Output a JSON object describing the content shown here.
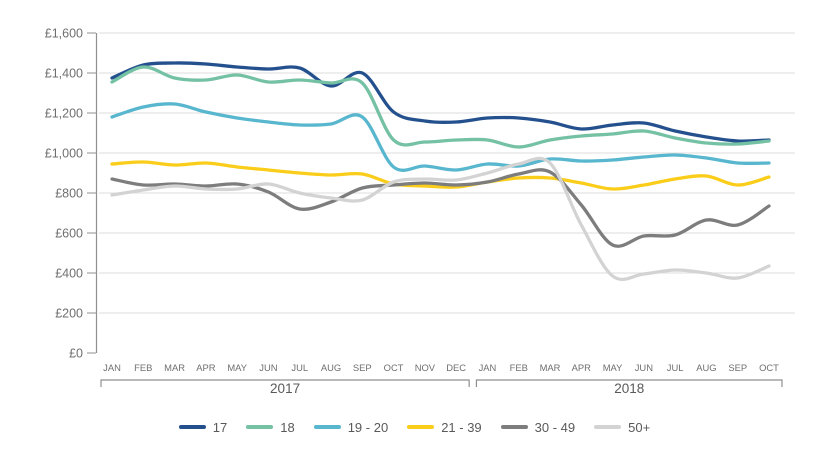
{
  "chart_data": {
    "type": "line",
    "title": "",
    "xlabel": "",
    "ylabel": "",
    "ylim": [
      0,
      1600
    ],
    "ytick_values": [
      0,
      200,
      400,
      600,
      800,
      1000,
      1200,
      1400,
      1600
    ],
    "ytick_labels": [
      "£0",
      "£200",
      "£400",
      "£600",
      "£800",
      "£1,000",
      "£1,200",
      "£1,400",
      "£1,600"
    ],
    "grid": true,
    "legend_position": "bottom",
    "months": [
      "JAN",
      "FEB",
      "MAR",
      "APR",
      "MAY",
      "JUN",
      "JUL",
      "AUG",
      "SEP",
      "OCT",
      "NOV",
      "DEC",
      "JAN",
      "FEB",
      "MAR",
      "APR",
      "MAY",
      "JUN",
      "JUL",
      "AUG",
      "SEP",
      "OCT"
    ],
    "year_groups": [
      {
        "label": "2017",
        "from": 0,
        "to": 11
      },
      {
        "label": "2018",
        "from": 12,
        "to": 21
      }
    ],
    "series": [
      {
        "name": "17",
        "color": "#24518e",
        "values": [
          1375,
          1440,
          1450,
          1445,
          1430,
          1420,
          1425,
          1335,
          1400,
          1205,
          1160,
          1155,
          1175,
          1175,
          1155,
          1120,
          1140,
          1150,
          1110,
          1080,
          1060,
          1065
        ]
      },
      {
        "name": "18",
        "color": "#75c1a4",
        "values": [
          1355,
          1430,
          1375,
          1365,
          1390,
          1355,
          1365,
          1350,
          1350,
          1065,
          1055,
          1065,
          1065,
          1030,
          1065,
          1085,
          1095,
          1110,
          1075,
          1050,
          1045,
          1060
        ]
      },
      {
        "name": "19 - 20",
        "color": "#58b7ce",
        "values": [
          1180,
          1230,
          1245,
          1205,
          1175,
          1155,
          1140,
          1145,
          1180,
          930,
          935,
          915,
          945,
          935,
          970,
          960,
          965,
          980,
          990,
          975,
          950,
          950
        ]
      },
      {
        "name": "21 - 39",
        "color": "#fbcd1b",
        "values": [
          945,
          955,
          940,
          950,
          930,
          915,
          900,
          890,
          895,
          845,
          835,
          830,
          855,
          875,
          875,
          850,
          820,
          840,
          870,
          885,
          840,
          880
        ]
      },
      {
        "name": "30 - 49",
        "color": "#7d7d7d",
        "values": [
          870,
          840,
          845,
          835,
          845,
          805,
          720,
          755,
          825,
          840,
          850,
          840,
          855,
          895,
          905,
          740,
          540,
          585,
          590,
          665,
          640,
          735
        ]
      },
      {
        "name": "50+",
        "color": "#d3d3d3",
        "values": [
          790,
          815,
          835,
          820,
          820,
          845,
          800,
          775,
          765,
          855,
          870,
          865,
          900,
          945,
          950,
          640,
          385,
          395,
          415,
          400,
          375,
          435
        ]
      }
    ],
    "style": {
      "grid_color": "#dddddd",
      "axis_color": "#8f8f8f",
      "tick_label_color": "#6f6f6f",
      "month_label_color": "#6f6f6f",
      "year_label_color": "#595959"
    }
  }
}
